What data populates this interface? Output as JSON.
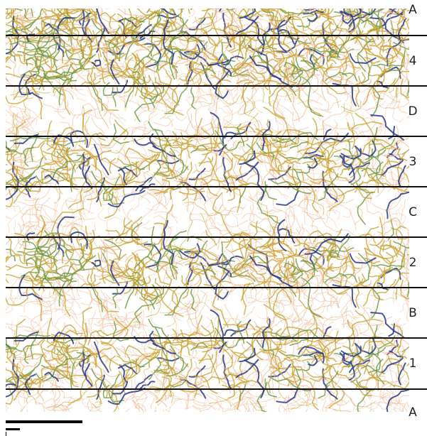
{
  "image": {
    "subject": "vortex-filament-field",
    "colors": {
      "background": "#ffffff",
      "filament_light": "#f0b890",
      "filament_mid": "#c8a030",
      "filament_green": "#6a9a40",
      "filament_dark": "#2a3a8a",
      "line": "#111111"
    }
  },
  "labels": [
    {
      "id": "A-top",
      "text": "A"
    },
    {
      "id": "4",
      "text": "4"
    },
    {
      "id": "D",
      "text": "D"
    },
    {
      "id": "3",
      "text": "3"
    },
    {
      "id": "C",
      "text": "C"
    },
    {
      "id": "2",
      "text": "2"
    },
    {
      "id": "B",
      "text": "B"
    },
    {
      "id": "1",
      "text": "1"
    },
    {
      "id": "A-bottom",
      "text": "A"
    }
  ]
}
